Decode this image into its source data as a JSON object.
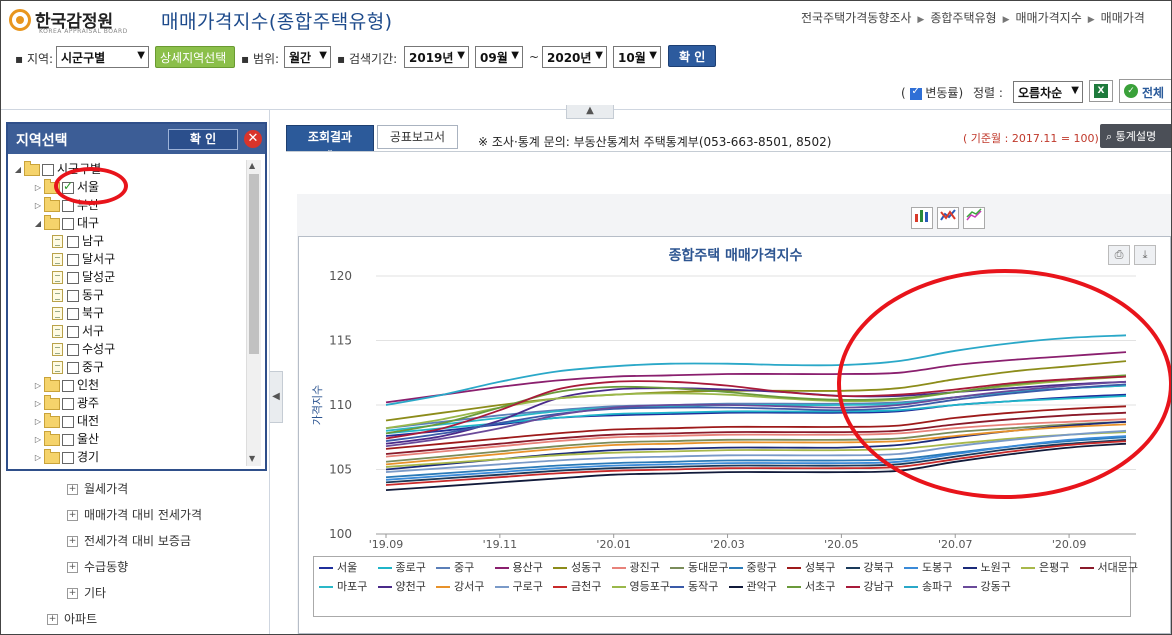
{
  "header": {
    "logo_text": "한국감정원",
    "logo_sub": "KOREA APPRAISAL BOARD",
    "page_title": "매매가격지수(종합주택유형)",
    "breadcrumb": [
      "전국주택가격동향조사",
      "종합주택유형",
      "매매가격지수",
      "매매가격"
    ]
  },
  "filters": {
    "region_label": "지역:",
    "region_value": "시군구별",
    "detail_button": "상세지역선택",
    "range_label": "범위:",
    "range_value": "월간",
    "period_label": "검색기간:",
    "from_year": "2019년",
    "from_month": "09월",
    "tilde": "~",
    "to_year": "2020년",
    "to_month": "10월",
    "confirm": "확 인"
  },
  "toolbar": {
    "change_rate_label": "변동률",
    "sort_label": "정렬 :",
    "sort_value": "오름차순",
    "full_label": "전체"
  },
  "region_panel": {
    "title": "지역선택",
    "confirm": "확 인",
    "tree": [
      {
        "label": "시군구별",
        "level": 0,
        "expanded": true,
        "type": "folder",
        "checked": false
      },
      {
        "label": "서울",
        "level": 1,
        "expanded": false,
        "type": "folder",
        "checked": true
      },
      {
        "label": "부산",
        "level": 1,
        "expanded": false,
        "type": "folder",
        "checked": false
      },
      {
        "label": "대구",
        "level": 1,
        "expanded": true,
        "type": "folder",
        "checked": false
      },
      {
        "label": "남구",
        "level": 2,
        "type": "doc",
        "checked": false
      },
      {
        "label": "달서구",
        "level": 2,
        "type": "doc",
        "checked": false
      },
      {
        "label": "달성군",
        "level": 2,
        "type": "doc",
        "checked": false
      },
      {
        "label": "동구",
        "level": 2,
        "type": "doc",
        "checked": false
      },
      {
        "label": "북구",
        "level": 2,
        "type": "doc",
        "checked": false
      },
      {
        "label": "서구",
        "level": 2,
        "type": "doc",
        "checked": false
      },
      {
        "label": "수성구",
        "level": 2,
        "type": "doc",
        "checked": false
      },
      {
        "label": "중구",
        "level": 2,
        "type": "doc",
        "checked": false
      },
      {
        "label": "인천",
        "level": 1,
        "expanded": false,
        "type": "folder",
        "checked": false
      },
      {
        "label": "광주",
        "level": 1,
        "expanded": false,
        "type": "folder",
        "checked": false
      },
      {
        "label": "대전",
        "level": 1,
        "expanded": false,
        "type": "folder",
        "checked": false
      },
      {
        "label": "울산",
        "level": 1,
        "expanded": false,
        "type": "folder",
        "checked": false
      },
      {
        "label": "경기",
        "level": 1,
        "expanded": false,
        "type": "folder",
        "checked": false
      }
    ]
  },
  "menu": [
    {
      "label": "월세가격",
      "indent": 1
    },
    {
      "label": "매매가격 대비 전세가격",
      "indent": 1
    },
    {
      "label": "전세가격 대비 보증금",
      "indent": 1
    },
    {
      "label": "수급동향",
      "indent": 1
    },
    {
      "label": "기타",
      "indent": 1
    },
    {
      "label": "아파트",
      "indent": 0
    }
  ],
  "tabs": {
    "result": "조회결과",
    "report": "공표보고서",
    "note": "※ 조사·통계 문의: 부동산통계처 주택통계부(053-663-8501, 8502)",
    "base_month": "( 기준월 : 2017.11 = 100)",
    "stats_button": "통계설명"
  },
  "chart_data": {
    "type": "line",
    "title": "종합주택 매매가격지수",
    "ylabel": "가격지수",
    "xlabel": "",
    "ylim": [
      100,
      120
    ],
    "yticks": [
      "100",
      "105",
      "110",
      "115",
      "120"
    ],
    "x": [
      "'19.09",
      "'19.10",
      "'19.11",
      "'19.12",
      "'20.01",
      "'20.02",
      "'20.03",
      "'20.04",
      "'20.05",
      "'20.06",
      "'20.07",
      "'20.08",
      "'20.09",
      "'20.10"
    ],
    "xtick_labels": [
      "'19.09",
      "'19.11",
      "'20.01",
      "'20.03",
      "'20.05",
      "'20.07",
      "'20.09"
    ],
    "legend_position": "bottom",
    "series": [
      {
        "name": "서울",
        "color": "#1f2f9c",
        "values": [
          107.6,
          108.0,
          108.5,
          109.0,
          109.2,
          109.3,
          109.4,
          109.4,
          109.4,
          109.5,
          110.0,
          110.3,
          110.6,
          110.8
        ]
      },
      {
        "name": "종로구",
        "color": "#1fb5c9",
        "values": [
          107.8,
          108.2,
          108.6,
          109.0,
          109.3,
          109.4,
          109.5,
          109.5,
          109.5,
          109.6,
          110.0,
          110.3,
          110.5,
          110.7
        ]
      },
      {
        "name": "중구",
        "color": "#5b7fb8",
        "values": [
          108.2,
          108.7,
          109.2,
          109.6,
          109.9,
          110.0,
          110.1,
          110.1,
          110.1,
          110.2,
          110.6,
          111.0,
          111.3,
          111.5
        ]
      },
      {
        "name": "용산구",
        "color": "#8a1f6e",
        "values": [
          110.2,
          110.8,
          111.4,
          111.9,
          112.2,
          112.3,
          112.4,
          112.4,
          112.4,
          112.5,
          113.1,
          113.5,
          113.8,
          114.1
        ]
      },
      {
        "name": "성동구",
        "color": "#8c8c1a",
        "values": [
          108.8,
          109.4,
          110.0,
          110.5,
          110.8,
          111.0,
          111.1,
          111.1,
          111.1,
          111.3,
          112.0,
          112.6,
          113.0,
          113.4
        ]
      },
      {
        "name": "광진구",
        "color": "#e8827a",
        "values": [
          106.0,
          106.4,
          106.8,
          107.2,
          107.5,
          107.6,
          107.7,
          107.7,
          107.7,
          107.8,
          108.2,
          108.5,
          108.7,
          108.9
        ]
      },
      {
        "name": "동대문구",
        "color": "#7a8c5a",
        "values": [
          105.6,
          106.0,
          106.4,
          106.8,
          107.1,
          107.2,
          107.3,
          107.3,
          107.3,
          107.4,
          107.9,
          108.2,
          108.5,
          108.7
        ]
      },
      {
        "name": "중랑구",
        "color": "#2a7ab8",
        "values": [
          104.4,
          104.7,
          105.0,
          105.3,
          105.5,
          105.6,
          105.7,
          105.7,
          105.7,
          105.8,
          106.3,
          106.8,
          107.2,
          107.5
        ]
      },
      {
        "name": "성북구",
        "color": "#9e1a1a",
        "values": [
          106.6,
          107.0,
          107.4,
          107.8,
          108.1,
          108.2,
          108.3,
          108.3,
          108.3,
          108.4,
          109.0,
          109.4,
          109.7,
          109.9
        ]
      },
      {
        "name": "강북구",
        "color": "#1a3a5a",
        "values": [
          104.0,
          104.3,
          104.6,
          104.9,
          105.1,
          105.2,
          105.3,
          105.3,
          105.3,
          105.4,
          106.0,
          106.6,
          107.0,
          107.3
        ]
      },
      {
        "name": "도봉구",
        "color": "#3a8ad8",
        "values": [
          104.2,
          104.5,
          104.8,
          105.1,
          105.3,
          105.4,
          105.5,
          105.5,
          105.5,
          105.6,
          106.2,
          106.8,
          107.3,
          107.6
        ]
      },
      {
        "name": "노원구",
        "color": "#1a2a7a",
        "values": [
          105.0,
          105.4,
          105.8,
          106.2,
          106.5,
          106.6,
          106.7,
          106.7,
          106.7,
          106.9,
          107.5,
          108.0,
          108.4,
          108.7
        ]
      },
      {
        "name": "은평구",
        "color": "#a8b84a",
        "values": [
          105.2,
          105.5,
          105.8,
          106.1,
          106.3,
          106.4,
          106.5,
          106.5,
          106.5,
          106.6,
          107.0,
          107.4,
          107.7,
          107.9
        ]
      },
      {
        "name": "서대문구",
        "color": "#8a1a2a",
        "values": [
          106.2,
          106.6,
          107.0,
          107.4,
          107.7,
          107.8,
          107.9,
          107.9,
          107.9,
          108.0,
          108.5,
          108.9,
          109.2,
          109.4
        ]
      },
      {
        "name": "마포구",
        "color": "#2ab8c8",
        "values": [
          108.0,
          108.5,
          109.0,
          109.5,
          109.8,
          109.9,
          110.0,
          110.0,
          110.0,
          110.1,
          110.6,
          111.0,
          111.3,
          111.5
        ]
      },
      {
        "name": "양천구",
        "color": "#4a2a8a",
        "values": [
          107.0,
          107.6,
          108.8,
          110.5,
          111.2,
          111.3,
          111.2,
          111.0,
          110.7,
          110.7,
          111.0,
          111.3,
          111.6,
          111.8
        ]
      },
      {
        "name": "강서구",
        "color": "#e8922a",
        "values": [
          105.4,
          105.8,
          106.2,
          106.6,
          106.9,
          107.0,
          107.1,
          107.1,
          107.1,
          107.2,
          107.6,
          108.0,
          108.3,
          108.5
        ]
      },
      {
        "name": "구로구",
        "color": "#7a9ac8",
        "values": [
          104.8,
          105.1,
          105.4,
          105.7,
          105.9,
          106.0,
          106.1,
          106.1,
          106.1,
          106.2,
          106.8,
          107.3,
          107.7,
          108.0
        ]
      },
      {
        "name": "금천구",
        "color": "#c82a2a",
        "values": [
          103.8,
          104.1,
          104.4,
          104.7,
          104.9,
          105.0,
          105.1,
          105.1,
          105.1,
          105.2,
          105.8,
          106.4,
          106.9,
          107.2
        ]
      },
      {
        "name": "영등포구",
        "color": "#9ab84a",
        "values": [
          108.2,
          108.9,
          109.8,
          110.5,
          110.8,
          110.9,
          110.8,
          110.5,
          110.3,
          110.4,
          111.0,
          111.5,
          111.9,
          112.2
        ]
      },
      {
        "name": "동작구",
        "color": "#3a5aa8",
        "values": [
          107.2,
          107.8,
          108.6,
          109.3,
          109.7,
          109.8,
          109.8,
          109.7,
          109.6,
          109.8,
          110.4,
          110.9,
          111.3,
          111.6
        ]
      },
      {
        "name": "관악구",
        "color": "#111a3a",
        "values": [
          103.4,
          103.7,
          104.0,
          104.3,
          104.6,
          104.7,
          104.8,
          104.8,
          104.8,
          104.9,
          105.6,
          106.2,
          106.7,
          107.0
        ]
      },
      {
        "name": "서초구",
        "color": "#6a9a3a",
        "values": [
          107.8,
          108.6,
          109.8,
          111.0,
          111.4,
          111.3,
          111.0,
          110.6,
          110.4,
          110.5,
          111.0,
          111.6,
          112.0,
          112.3
        ]
      },
      {
        "name": "강남구",
        "color": "#a81a3a",
        "values": [
          107.4,
          108.2,
          109.6,
          111.2,
          111.8,
          111.8,
          111.5,
          111.0,
          110.7,
          110.8,
          111.2,
          111.7,
          112.0,
          112.2
        ]
      },
      {
        "name": "송파구",
        "color": "#2aa8c8",
        "values": [
          110.0,
          110.8,
          111.8,
          112.6,
          113.0,
          113.2,
          113.2,
          113.1,
          113.1,
          113.4,
          114.2,
          114.8,
          115.2,
          115.4
        ]
      },
      {
        "name": "강동구",
        "color": "#6a4a9a",
        "values": [
          106.8,
          107.4,
          108.2,
          109.2,
          109.8,
          110.0,
          110.0,
          109.9,
          109.8,
          110.0,
          110.6,
          111.1,
          111.5,
          111.8
        ]
      }
    ]
  },
  "annotation_color": "#e8141b"
}
